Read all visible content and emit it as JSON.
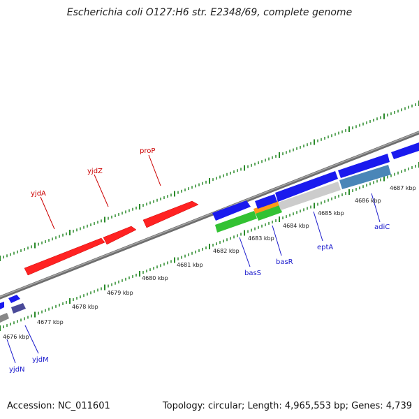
{
  "title": "Escherichia coli O127:H6 str. E2348/69, complete genome",
  "accession_text": "Accession: NC_011601",
  "summary_text": "Topology: circular; Length: 4,965,553 bp; Genes: 4,739",
  "colors": {
    "forward_gene": "#ff2020",
    "reverse_gene": "#1a1aee",
    "backbone": "#7a7a7a",
    "ticks": "#2a8a2a",
    "rna_green": "#33c233",
    "rna_orange": "#ff9a1a",
    "pseudo_gray": "#cccccc",
    "steel": "#4a86b8",
    "purple": "#4a4a99",
    "forward_label": "#cc0000",
    "reverse_label": "#1a1acc"
  },
  "scale_labels": [
    "4676 kbp",
    "4677 kbp",
    "4678 kbp",
    "4679 kbp",
    "4680 kbp",
    "4681 kbp",
    "4682 kbp",
    "4683 kbp",
    "4684 kbp",
    "4685 kbp",
    "4686 kbp",
    "4687 kbp"
  ],
  "forward_genes": [
    "yjdA",
    "yjdZ",
    "proP"
  ],
  "reverse_genes": [
    "yjdN",
    "yjdM",
    "basS",
    "basR",
    "eptA",
    "adiC"
  ]
}
